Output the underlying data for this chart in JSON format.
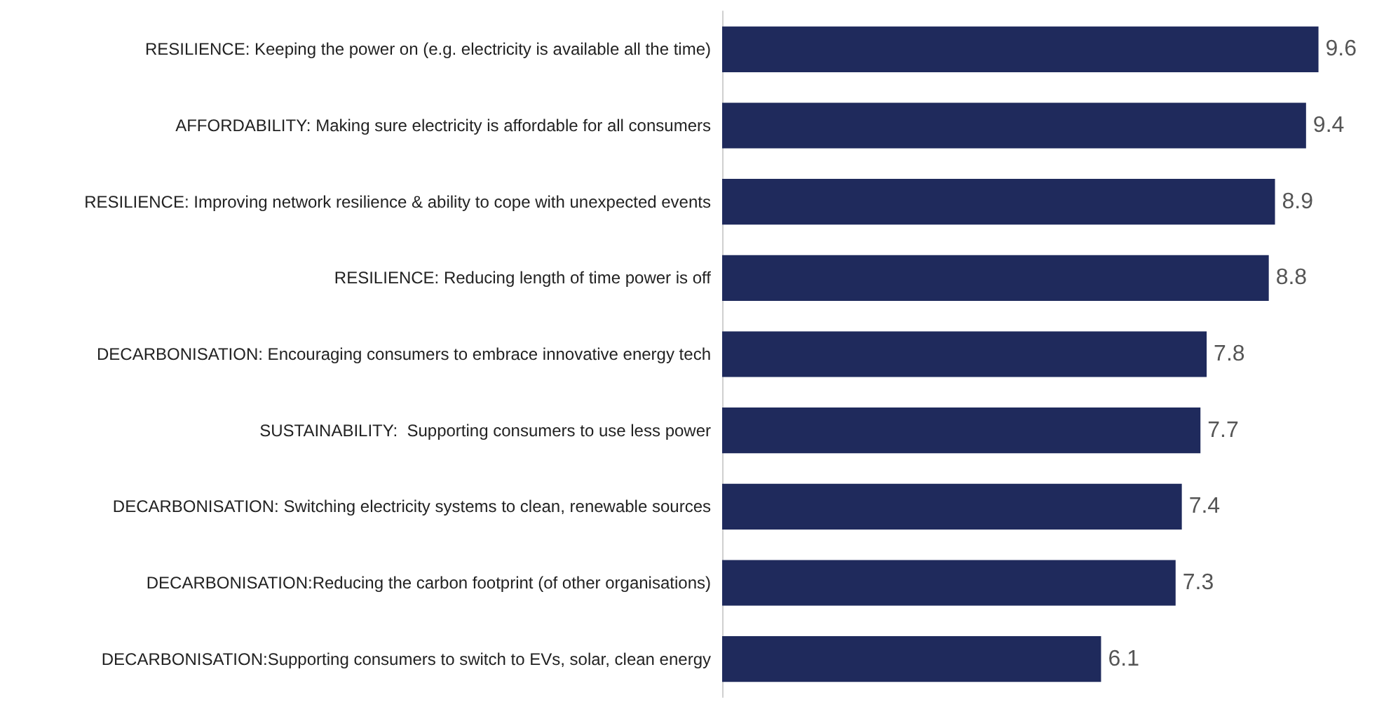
{
  "chart_data": {
    "type": "bar",
    "orientation": "horizontal",
    "data_labels": true,
    "color": "#1f2a5c",
    "categories": [
      "RESILIENCE: Keeping the power on (e.g. electricity is available all the time)",
      "AFFORDABILITY: Making sure electricity is affordable for all consumers",
      "RESILIENCE: Improving network resilience & ability to cope with unexpected events",
      "RESILIENCE: Reducing length of time power is off",
      "DECARBONISATION: Encouraging consumers to embrace innovative energy tech",
      "SUSTAINABILITY:  Supporting consumers to use less power",
      "DECARBONISATION: Switching electricity systems to clean, renewable sources",
      "DECARBONISATION:Reducing the carbon footprint (of other organisations)",
      "DECARBONISATION:Supporting consumers to switch to EVs, solar, clean energy"
    ],
    "values": [
      9.6,
      9.4,
      8.9,
      8.8,
      7.8,
      7.7,
      7.4,
      7.3,
      6.1
    ]
  }
}
